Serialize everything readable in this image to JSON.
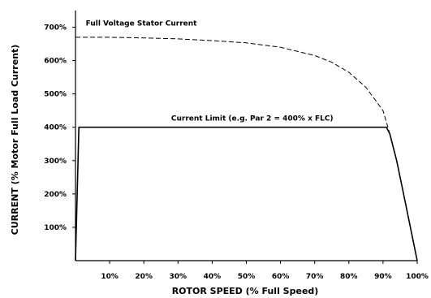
{
  "chart_data": {
    "type": "line",
    "xlabel": "ROTOR SPEED (% Full Speed)",
    "ylabel": "CURRENT (% Motor Full Load Current)",
    "xlim": [
      0,
      100
    ],
    "ylim": [
      0,
      750
    ],
    "x_ticks": [
      "10%",
      "20%",
      "30%",
      "40%",
      "50%",
      "60%",
      "70%",
      "80%",
      "90%",
      "100%"
    ],
    "y_ticks": [
      "100%",
      "200%",
      "300%",
      "400%",
      "500%",
      "600%",
      "700%"
    ],
    "grid": false,
    "series": [
      {
        "name": "Full Voltage Stator Current",
        "style": "dashed",
        "x": [
          0,
          10,
          20,
          30,
          40,
          50,
          60,
          70,
          75,
          80,
          85,
          90,
          92,
          94,
          96,
          98,
          100
        ],
        "y": [
          670,
          670,
          668,
          665,
          660,
          653,
          640,
          615,
          595,
          565,
          520,
          450,
          380,
          300,
          200,
          100,
          0
        ]
      },
      {
        "name": "Current Limit (e.g. Par 2 = 400% x FLC)",
        "style": "solid",
        "x": [
          0,
          1,
          91,
          92,
          94,
          96,
          98,
          100
        ],
        "y": [
          0,
          400,
          400,
          380,
          300,
          200,
          100,
          0
        ]
      }
    ],
    "annotations": [
      {
        "text": "Full Voltage Stator Current",
        "x": 3,
        "y": 705
      },
      {
        "text": "Current Limit (e.g. Par 2 = 400% x FLC)",
        "x": 28,
        "y": 420
      }
    ]
  }
}
